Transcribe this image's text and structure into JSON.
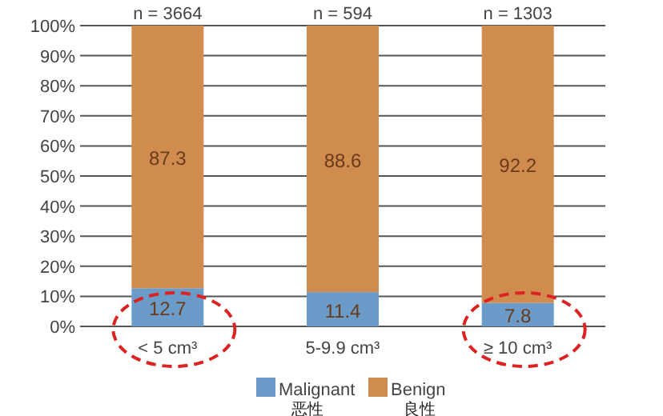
{
  "chart_data": {
    "type": "bar",
    "stacked": true,
    "categories": [
      "< 5 cm³",
      "5-9.9 cm³",
      "≥ 10 cm³"
    ],
    "series": [
      {
        "name": "Malignant",
        "color": "#6b9bc8",
        "values": [
          12.7,
          11.4,
          7.8
        ]
      },
      {
        "name": "Benign",
        "color": "#d08b4f",
        "values": [
          87.3,
          88.6,
          92.2
        ]
      }
    ],
    "ylim": [
      0,
      100
    ],
    "yticks": [
      {
        "value": 0,
        "label": "0%"
      },
      {
        "value": 10,
        "label": "10%"
      },
      {
        "value": 20,
        "label": "20%"
      },
      {
        "value": 30,
        "label": "30%"
      },
      {
        "value": 40,
        "label": "40%"
      },
      {
        "value": 50,
        "label": "50%"
      },
      {
        "value": 60,
        "label": "60%"
      },
      {
        "value": 70,
        "label": "70%"
      },
      {
        "value": 80,
        "label": "80%"
      },
      {
        "value": 90,
        "label": "90%"
      },
      {
        "value": 100,
        "label": "100%"
      }
    ],
    "grid": "y",
    "legend": "bottom",
    "data_labels": true,
    "annotations": [
      {
        "text": "n = 3664",
        "x": "< 5 cm³",
        "y": 100
      },
      {
        "text": "n = 594",
        "x": "5-9.9 cm³",
        "y": 100
      },
      {
        "text": "n = 1303",
        "x": "≥ 10 cm³",
        "y": 100
      },
      "恶性",
      "良性"
    ]
  }
}
